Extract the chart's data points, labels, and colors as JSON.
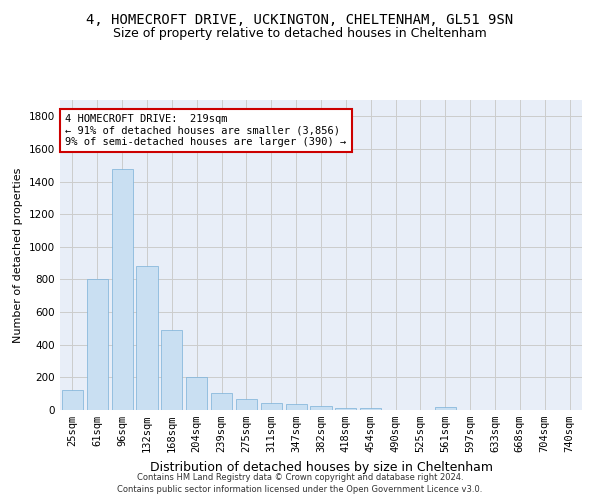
{
  "title": "4, HOMECROFT DRIVE, UCKINGTON, CHELTENHAM, GL51 9SN",
  "subtitle": "Size of property relative to detached houses in Cheltenham",
  "xlabel": "Distribution of detached houses by size in Cheltenham",
  "ylabel": "Number of detached properties",
  "bar_color": "#c9dff2",
  "bar_edge_color": "#7ab0d8",
  "annotation_box_text": "4 HOMECROFT DRIVE:  219sqm\n← 91% of detached houses are smaller (3,856)\n9% of semi-detached houses are larger (390) →",
  "annotation_box_color": "#ffffff",
  "annotation_box_edge_color": "#cc0000",
  "categories": [
    "25sqm",
    "61sqm",
    "96sqm",
    "132sqm",
    "168sqm",
    "204sqm",
    "239sqm",
    "275sqm",
    "311sqm",
    "347sqm",
    "382sqm",
    "418sqm",
    "454sqm",
    "490sqm",
    "525sqm",
    "561sqm",
    "597sqm",
    "633sqm",
    "668sqm",
    "704sqm",
    "740sqm"
  ],
  "values": [
    125,
    800,
    1480,
    880,
    490,
    205,
    105,
    65,
    40,
    35,
    25,
    10,
    10,
    0,
    0,
    20,
    0,
    0,
    0,
    0,
    0
  ],
  "ylim": [
    0,
    1900
  ],
  "yticks": [
    0,
    200,
    400,
    600,
    800,
    1000,
    1200,
    1400,
    1600,
    1800
  ],
  "grid_color": "#cccccc",
  "background_color": "#e8eef8",
  "footer_line1": "Contains HM Land Registry data © Crown copyright and database right 2024.",
  "footer_line2": "Contains public sector information licensed under the Open Government Licence v3.0.",
  "title_fontsize": 10,
  "subtitle_fontsize": 9,
  "annot_fontsize": 7.5,
  "ylabel_fontsize": 8,
  "xlabel_fontsize": 9,
  "tick_fontsize": 7.5,
  "footer_fontsize": 6
}
